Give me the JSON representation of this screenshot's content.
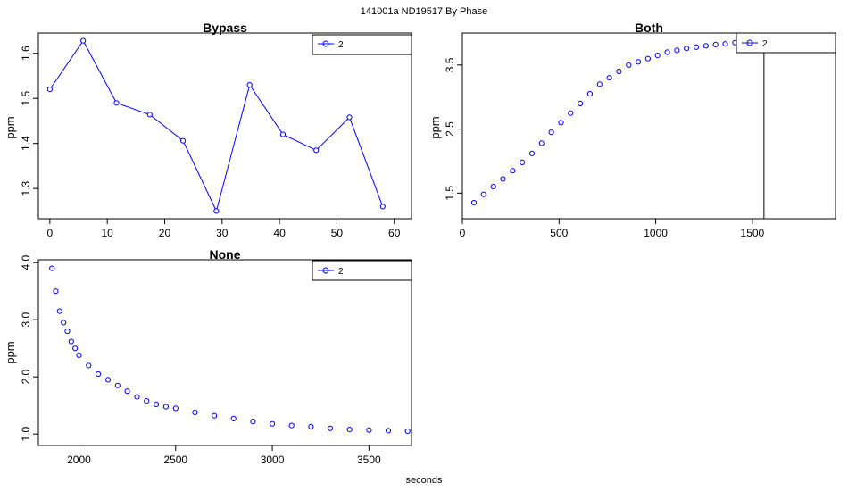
{
  "figure": {
    "title": "141001a    ND19517   By Phase",
    "xlabel": "seconds"
  },
  "chart_data": [
    {
      "type": "line",
      "title": "Bypass",
      "ylabel": "ppm",
      "xlim": [
        -2,
        63
      ],
      "ylim": [
        1.233,
        1.645
      ],
      "xticks": [
        0,
        10,
        20,
        30,
        40,
        50,
        60
      ],
      "yticks": [
        1.3,
        1.4,
        1.5,
        1.6
      ],
      "legend": {
        "position": "top-right",
        "label": "2"
      },
      "series": [
        {
          "name": "2",
          "color": "#0000ff",
          "x": [
            0,
            5.8,
            11.6,
            17.4,
            23.2,
            29,
            34.8,
            40.6,
            46.4,
            52.2,
            58
          ],
          "y": [
            1.52,
            1.628,
            1.49,
            1.464,
            1.406,
            1.25,
            1.53,
            1.42,
            1.385,
            1.458,
            1.26
          ]
        }
      ]
    },
    {
      "type": "scatter",
      "title": "Both",
      "ylabel": "ppm",
      "xlim": [
        0,
        1930
      ],
      "ylim": [
        1.1,
        4.0
      ],
      "xticks": [
        0,
        500,
        1000,
        1500
      ],
      "yticks": [
        1.5,
        2.5,
        3.5
      ],
      "legend": {
        "position": "top-right",
        "label": "2"
      },
      "vline": 1560,
      "series": [
        {
          "name": "2",
          "color": "#0000ff",
          "x": [
            60,
            110,
            160,
            210,
            260,
            310,
            360,
            410,
            460,
            510,
            560,
            610,
            660,
            710,
            760,
            810,
            860,
            910,
            960,
            1010,
            1060,
            1110,
            1160,
            1210,
            1260,
            1310,
            1360,
            1410,
            1460,
            1510,
            1560,
            1610,
            1660,
            1710,
            1760,
            1810,
            1850
          ],
          "y": [
            1.35,
            1.48,
            1.6,
            1.72,
            1.85,
            1.98,
            2.12,
            2.28,
            2.45,
            2.6,
            2.75,
            2.9,
            3.05,
            3.2,
            3.3,
            3.4,
            3.5,
            3.55,
            3.6,
            3.65,
            3.7,
            3.73,
            3.76,
            3.78,
            3.8,
            3.82,
            3.83,
            3.85,
            3.86,
            3.87,
            3.88,
            3.89,
            3.9,
            3.91,
            3.92,
            3.92,
            3.93
          ]
        }
      ]
    },
    {
      "type": "scatter",
      "title": "None",
      "ylabel": "ppm",
      "xlim": [
        1790,
        3720
      ],
      "ylim": [
        0.8,
        4.05
      ],
      "xticks": [
        2000,
        2500,
        3000,
        3500
      ],
      "yticks": [
        1.0,
        2.0,
        3.0,
        4.0
      ],
      "legend": {
        "position": "top-right",
        "label": "2"
      },
      "series": [
        {
          "name": "2",
          "color": "#0000ff",
          "x": [
            1860,
            1880,
            1900,
            1920,
            1940,
            1960,
            1980,
            2000,
            2050,
            2100,
            2150,
            2200,
            2250,
            2300,
            2350,
            2400,
            2450,
            2500,
            2600,
            2700,
            2800,
            2900,
            3000,
            3100,
            3200,
            3300,
            3400,
            3500,
            3600,
            3700
          ],
          "y": [
            3.9,
            3.5,
            3.15,
            2.95,
            2.8,
            2.62,
            2.5,
            2.38,
            2.2,
            2.05,
            1.95,
            1.85,
            1.75,
            1.65,
            1.58,
            1.52,
            1.48,
            1.45,
            1.38,
            1.32,
            1.27,
            1.22,
            1.18,
            1.15,
            1.13,
            1.1,
            1.08,
            1.07,
            1.06,
            1.05
          ]
        }
      ]
    }
  ]
}
